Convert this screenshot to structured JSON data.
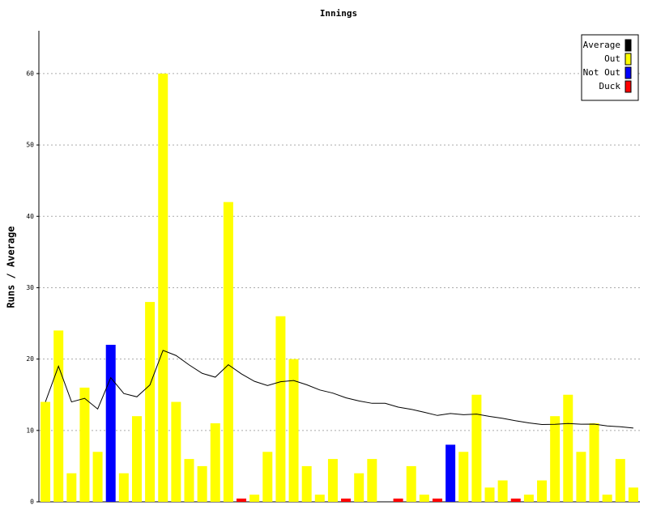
{
  "chart_data": {
    "type": "bar",
    "title": "Innings",
    "y_label": "Runs / Average",
    "categories": [
      null,
      null,
      null,
      null,
      null,
      null,
      null,
      null,
      null,
      null,
      null,
      null,
      null,
      null,
      null,
      null,
      null,
      null,
      null,
      null,
      null,
      null,
      null,
      null,
      null,
      null,
      null,
      null,
      null,
      null,
      null,
      null,
      null,
      null,
      null,
      null,
      null,
      null,
      null,
      null,
      null,
      null,
      null,
      null,
      null,
      null
    ],
    "ylim": [
      0,
      66
    ],
    "yticks": [
      0,
      10,
      20,
      30,
      40,
      50,
      60
    ],
    "grid": true,
    "legend": "top-right",
    "series": [
      {
        "name": "Average",
        "color": "#000000",
        "type": "line",
        "values": [
          14,
          19,
          14,
          14.5,
          13,
          17.4,
          15.17,
          14.71,
          16.38,
          21.22,
          20.5,
          19.18,
          18,
          17.46,
          19.21,
          17.93,
          16.88,
          16.29,
          16.83,
          17,
          16.4,
          15.67,
          15.23,
          14.57,
          14.13,
          13.8,
          13.8,
          13.27,
          12.96,
          12.54,
          12.1,
          12.38,
          12.2,
          12.29,
          11.97,
          11.7,
          11.35,
          11.06,
          10.83,
          10.86,
          10.97,
          10.87,
          10.88,
          10.63,
          10.52,
          10.33
        ]
      },
      {
        "name": "Out",
        "color": "#ffff00",
        "values": [
          14,
          24,
          4,
          16,
          7,
          null,
          4,
          12,
          28,
          60,
          14,
          6,
          5,
          11,
          42,
          null,
          1,
          7,
          26,
          20,
          5,
          1,
          6,
          null,
          4,
          6,
          null,
          null,
          5,
          1,
          null,
          null,
          7,
          15,
          2,
          3,
          null,
          1,
          3,
          12,
          15,
          7,
          11,
          1,
          6,
          2
        ]
      },
      {
        "name": "Not Out",
        "color": "#0000ff",
        "values": [
          null,
          null,
          null,
          null,
          null,
          22,
          null,
          null,
          null,
          null,
          null,
          null,
          null,
          null,
          null,
          null,
          null,
          null,
          null,
          null,
          null,
          null,
          null,
          null,
          null,
          null,
          0,
          null,
          null,
          null,
          null,
          8,
          null,
          null,
          null,
          null,
          null,
          null,
          null,
          null,
          null,
          null,
          null,
          null,
          null,
          null
        ]
      },
      {
        "name": "Duck",
        "color": "#ff0000",
        "values": [
          null,
          null,
          null,
          null,
          null,
          null,
          null,
          null,
          null,
          null,
          null,
          null,
          null,
          null,
          null,
          0,
          null,
          null,
          null,
          null,
          null,
          null,
          null,
          0,
          null,
          null,
          null,
          0,
          null,
          null,
          0,
          null,
          null,
          null,
          null,
          null,
          0,
          null,
          null,
          null,
          null,
          null,
          null,
          null,
          null,
          null
        ]
      }
    ]
  }
}
